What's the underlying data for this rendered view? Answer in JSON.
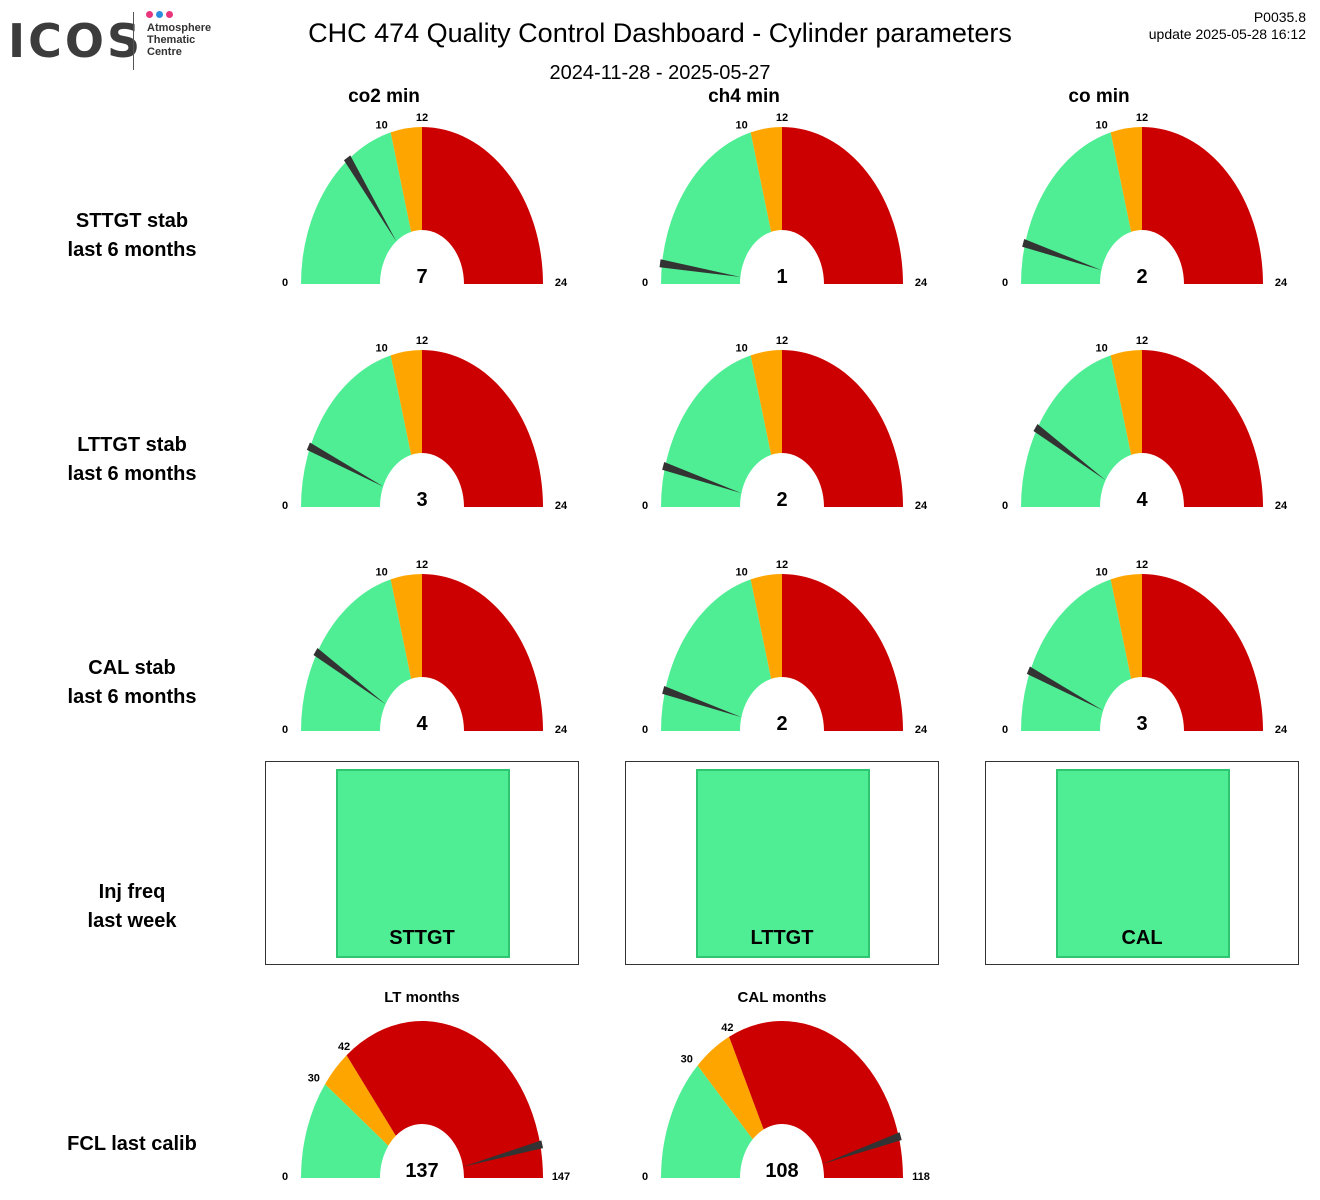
{
  "header": {
    "logo_word": "ICOS",
    "logo_lines": [
      "Atmosphere",
      "Thematic",
      "Centre"
    ],
    "logo_dot_colors": [
      "#e8357c",
      "#2b8fe0",
      "#e8357c"
    ],
    "title": "CHC 474 Quality Control Dashboard - Cylinder parameters",
    "date_range": "2024-11-28 - 2025-05-27",
    "code": "P0035.8",
    "update": "update  2025-05-28 16:12"
  },
  "columns": [
    "co2 min",
    "ch4 min",
    "co min"
  ],
  "rows": [
    {
      "label1": "STTGT stab",
      "label2": "last 6 months"
    },
    {
      "label1": "LTTGT stab",
      "label2": "last 6 months"
    },
    {
      "label1": "CAL stab",
      "label2": "last 6 months"
    },
    {
      "label1": "Inj freq",
      "label2": "last week"
    },
    {
      "label1": "FCL last calib",
      "label2": ""
    }
  ],
  "colors": {
    "good": "#50ee94",
    "warn": "#ffa500",
    "bad": "#cc0000",
    "needle": "#333333",
    "panel_fill": "#50ee94",
    "panel_border": "#2fc671"
  },
  "chart_data": [
    {
      "type": "gauge",
      "row": "STTGT stab",
      "column": "co2 min",
      "min": 0,
      "max": 24,
      "thresholds": [
        10,
        12
      ],
      "value": 7,
      "labels": {
        "min": "0",
        "t1": "10",
        "t2": "12",
        "max": "24",
        "value": "7"
      }
    },
    {
      "type": "gauge",
      "row": "STTGT stab",
      "column": "ch4 min",
      "min": 0,
      "max": 24,
      "thresholds": [
        10,
        12
      ],
      "value": 1,
      "labels": {
        "min": "0",
        "t1": "10",
        "t2": "12",
        "max": "24",
        "value": "1"
      }
    },
    {
      "type": "gauge",
      "row": "STTGT stab",
      "column": "co min",
      "min": 0,
      "max": 24,
      "thresholds": [
        10,
        12
      ],
      "value": 2,
      "labels": {
        "min": "0",
        "t1": "10",
        "t2": "12",
        "max": "24",
        "value": "2"
      }
    },
    {
      "type": "gauge",
      "row": "LTTGT stab",
      "column": "co2 min",
      "min": 0,
      "max": 24,
      "thresholds": [
        10,
        12
      ],
      "value": 3,
      "labels": {
        "min": "0",
        "t1": "10",
        "t2": "12",
        "max": "24",
        "value": "3"
      }
    },
    {
      "type": "gauge",
      "row": "LTTGT stab",
      "column": "ch4 min",
      "min": 0,
      "max": 24,
      "thresholds": [
        10,
        12
      ],
      "value": 2,
      "labels": {
        "min": "0",
        "t1": "10",
        "t2": "12",
        "max": "24",
        "value": "2"
      }
    },
    {
      "type": "gauge",
      "row": "LTTGT stab",
      "column": "co min",
      "min": 0,
      "max": 24,
      "thresholds": [
        10,
        12
      ],
      "value": 4,
      "labels": {
        "min": "0",
        "t1": "10",
        "t2": "12",
        "max": "24",
        "value": "4"
      }
    },
    {
      "type": "gauge",
      "row": "CAL stab",
      "column": "co2 min",
      "min": 0,
      "max": 24,
      "thresholds": [
        10,
        12
      ],
      "value": 4,
      "labels": {
        "min": "0",
        "t1": "10",
        "t2": "12",
        "max": "24",
        "value": "4"
      }
    },
    {
      "type": "gauge",
      "row": "CAL stab",
      "column": "ch4 min",
      "min": 0,
      "max": 24,
      "thresholds": [
        10,
        12
      ],
      "value": 2,
      "labels": {
        "min": "0",
        "t1": "10",
        "t2": "12",
        "max": "24",
        "value": "2"
      }
    },
    {
      "type": "gauge",
      "row": "CAL stab",
      "column": "co min",
      "min": 0,
      "max": 24,
      "thresholds": [
        10,
        12
      ],
      "value": 3,
      "labels": {
        "min": "0",
        "t1": "10",
        "t2": "12",
        "max": "24",
        "value": "3"
      }
    },
    {
      "type": "gauge",
      "row": "FCL last calib",
      "title": "LT months",
      "min": 0,
      "max": 147,
      "thresholds": [
        30,
        42
      ],
      "value": 137,
      "labels": {
        "min": "0",
        "t1": "30",
        "t2": "42",
        "max": "147",
        "value": "137"
      }
    },
    {
      "type": "gauge",
      "row": "FCL last calib",
      "title": "CAL months",
      "min": 0,
      "max": 118,
      "thresholds": [
        30,
        42
      ],
      "value": 108,
      "labels": {
        "min": "0",
        "t1": "30",
        "t2": "42",
        "max": "118",
        "value": "108"
      }
    }
  ],
  "inj_freq": [
    {
      "label": "STTGT",
      "status": "ok"
    },
    {
      "label": "LTTGT",
      "status": "ok"
    },
    {
      "label": "CAL",
      "status": "ok"
    }
  ]
}
